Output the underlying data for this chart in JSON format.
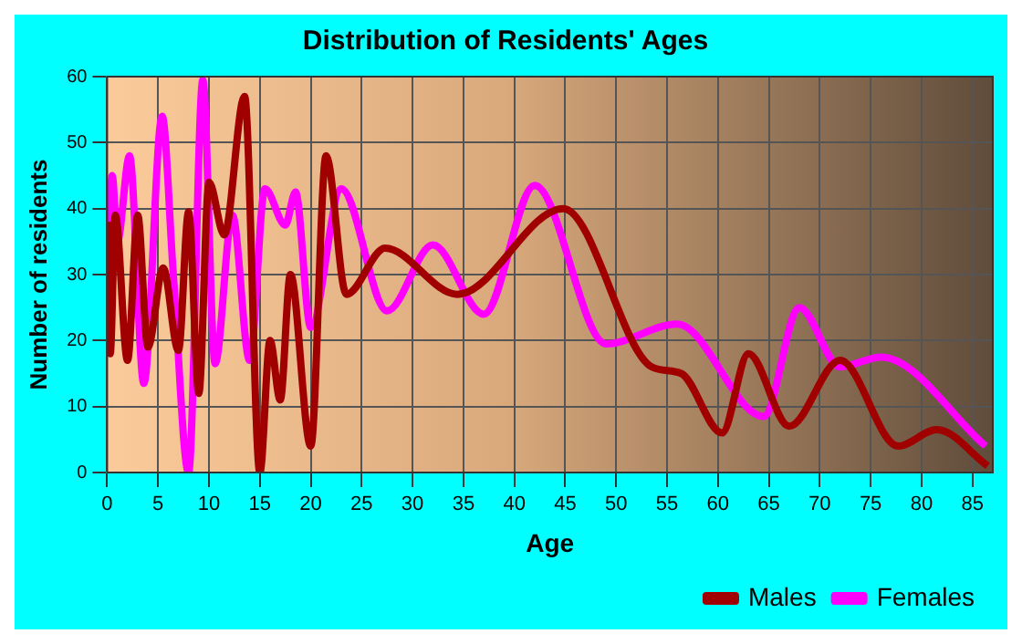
{
  "chart_data": {
    "type": "line",
    "title": "Distribution of Residents' Ages",
    "xlabel": "Age",
    "ylabel": "Number of residents",
    "xlim": [
      0,
      87
    ],
    "xticks": [
      0,
      5,
      10,
      15,
      20,
      25,
      30,
      35,
      40,
      45,
      50,
      55,
      60,
      65,
      70,
      75,
      80,
      85
    ],
    "ylim": [
      0,
      60
    ],
    "yticks": [
      0,
      10,
      20,
      30,
      40,
      50,
      60
    ],
    "grid": true,
    "legend": "bottom right",
    "marker": "none",
    "line_style": "solid",
    "series": [
      {
        "name": "Males",
        "color": "#a00000",
        "x": [
          0,
          0.3,
          0.8,
          2,
          3,
          4,
          5.5,
          7,
          8,
          9,
          10,
          11.5,
          13.5,
          15,
          16,
          17,
          18,
          20,
          21.5,
          23.5,
          27.3,
          34.4,
          44.8,
          53.5,
          56.4,
          60.4,
          63,
          67,
          72,
          77.7,
          81.5,
          86.5
        ],
        "values": [
          38,
          18,
          39,
          17,
          39,
          19,
          31,
          18.5,
          39.5,
          12,
          44,
          36,
          57,
          0,
          20,
          11,
          30,
          4,
          48,
          27,
          34,
          27,
          40,
          16,
          15,
          6,
          18,
          7,
          17,
          4,
          6.5,
          1
        ]
      },
      {
        "name": "Females",
        "color": "#ff00ff",
        "x": [
          0,
          0.5,
          1,
          2.2,
          3.6,
          5.4,
          6.5,
          8,
          9.4,
          10.6,
          12.3,
          14,
          15.5,
          17.5,
          18.5,
          20,
          23,
          27.5,
          32,
          37,
          42,
          49,
          56,
          64.5,
          68,
          72,
          76,
          86.3
        ],
        "values": [
          30,
          45,
          35,
          48,
          13.5,
          54,
          30,
          0,
          59.5,
          16.5,
          39,
          17,
          43,
          37.5,
          42.5,
          22,
          43,
          24.5,
          34.5,
          24,
          43.5,
          19.5,
          22.5,
          8.5,
          25,
          16,
          17.5,
          4
        ]
      }
    ]
  }
}
